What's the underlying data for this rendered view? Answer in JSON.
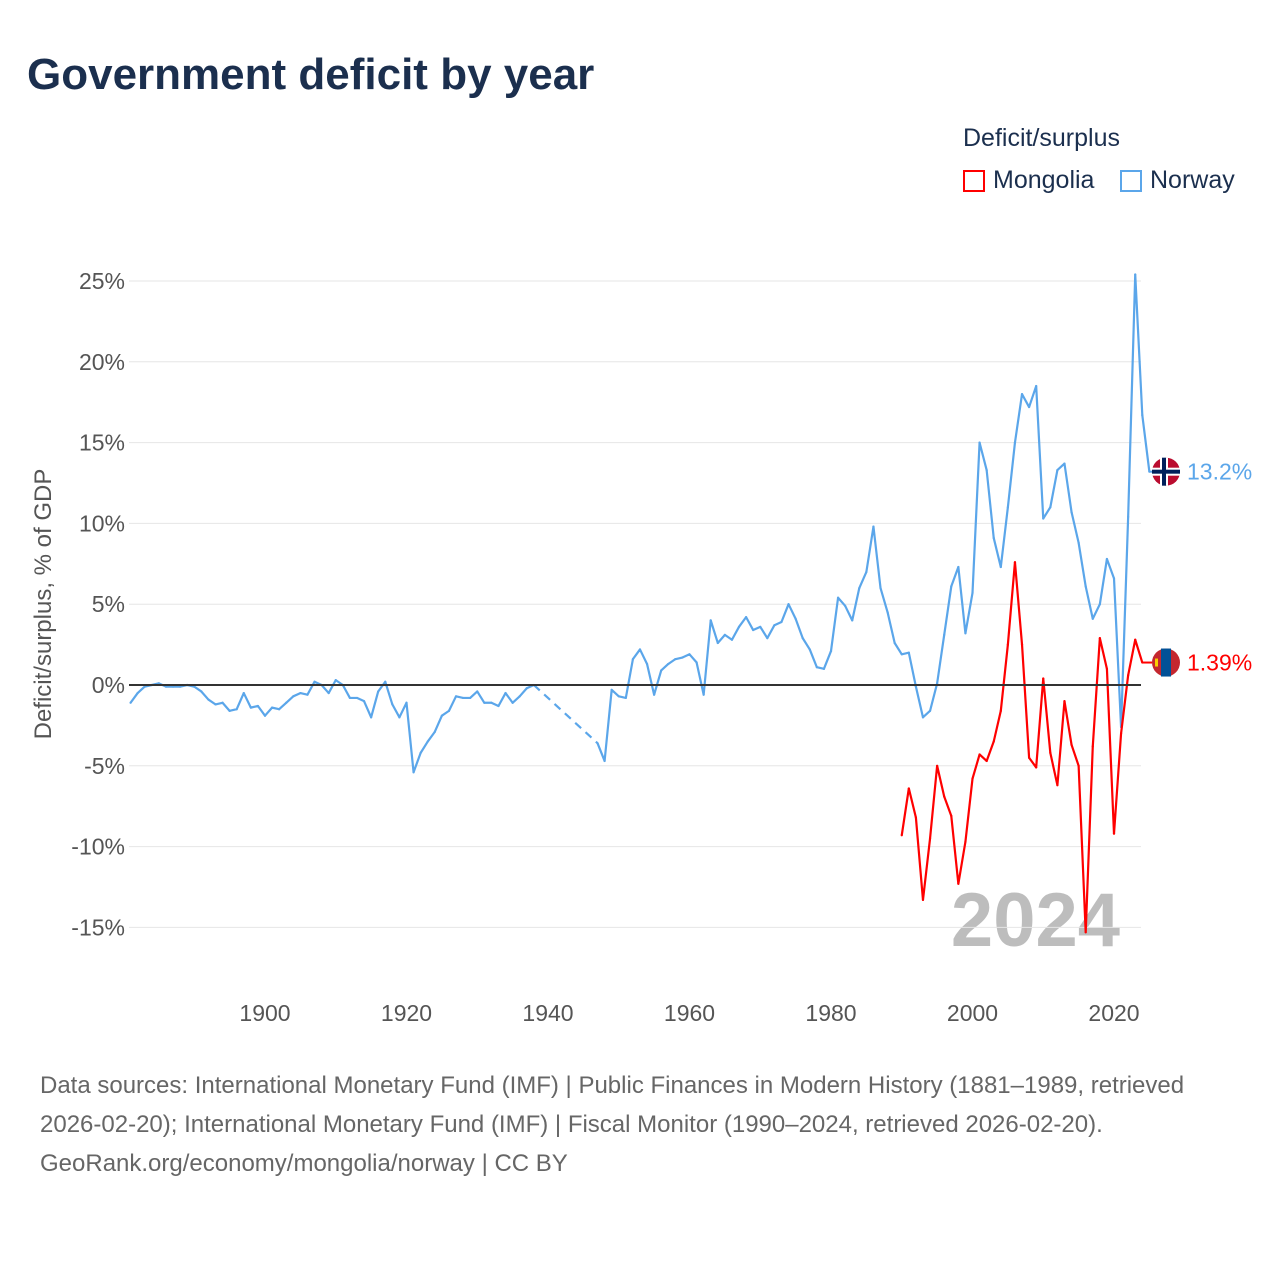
{
  "chart_data": {
    "type": "line",
    "title": "Government deficit by year",
    "ylabel": "Deficit/surplus, % of GDP",
    "xlabel": "",
    "legend_title": "Deficit/surplus",
    "legend_position": "top-right",
    "year_watermark": "2024",
    "xlim": [
      1881,
      2024
    ],
    "ylim": [
      -17,
      27
    ],
    "xticks": [
      1900,
      1920,
      1940,
      1960,
      1980,
      2000,
      2020
    ],
    "yticks": [
      -15,
      -10,
      -5,
      0,
      5,
      10,
      15,
      20,
      25
    ],
    "ytick_labels": [
      "-15%",
      "-10%",
      "-5%",
      "0%",
      "5%",
      "10%",
      "15%",
      "20%",
      "25%"
    ],
    "series": [
      {
        "name": "Mongolia",
        "color": "#ff0000",
        "end_label": "1.39%",
        "start_year": 1990,
        "values": [
          -9.3,
          -6.4,
          -8.2,
          -13.3,
          -9.5,
          -5.0,
          -6.9,
          -8.1,
          -12.3,
          -9.7,
          -5.8,
          -4.3,
          -4.7,
          -3.5,
          -1.6,
          2.5,
          7.6,
          2.5,
          -4.5,
          -5.1,
          0.4,
          -4.2,
          -6.2,
          -1.0,
          -3.7,
          -5.0,
          -15.3,
          -3.8,
          2.9,
          1.0,
          -9.2,
          -3.0,
          0.6,
          2.8,
          1.39
        ]
      },
      {
        "name": "Norway",
        "color": "#5ba6ea",
        "end_label": "13.2%",
        "start_year": 1881,
        "values": [
          -1.1,
          -0.5,
          -0.1,
          0,
          0.1,
          -0.1,
          -0.1,
          -0.1,
          0,
          -0.1,
          -0.4,
          -0.9,
          -1.2,
          -1.1,
          -1.6,
          -1.5,
          -0.5,
          -1.4,
          -1.3,
          -1.9,
          -1.4,
          -1.5,
          -1.1,
          -0.7,
          -0.5,
          -0.6,
          0.2,
          0,
          -0.5,
          0.3,
          0,
          -0.8,
          -0.8,
          -1.0,
          -2.0,
          -0.4,
          0.2,
          -1.2,
          -2.0,
          -1.1,
          -5.4,
          -4.2,
          -3.5,
          -2.9,
          -1.9,
          -1.6,
          -0.7,
          -0.8,
          -0.8,
          -0.4,
          -1.1,
          -1.1,
          -1.3,
          -0.5,
          -1.1,
          -0.7,
          -0.2,
          0.0,
          null,
          null,
          null,
          null,
          null,
          null,
          null,
          null,
          -3.6,
          -4.7,
          -0.3,
          -0.7,
          -0.8,
          1.6,
          2.2,
          1.3,
          -0.6,
          0.9,
          1.3,
          1.6,
          1.7,
          1.9,
          1.4,
          -0.6,
          4.0,
          2.6,
          3.1,
          2.8,
          3.6,
          4.2,
          3.4,
          3.6,
          2.9,
          3.7,
          3.9,
          5.0,
          4.1,
          2.9,
          2.2,
          1.1,
          1.0,
          2.1,
          5.4,
          4.9,
          4.0,
          6.0,
          7.0,
          9.8,
          6.0,
          4.5,
          2.6,
          1.9,
          2.0,
          -0.1,
          -2.0,
          -1.6,
          0.1,
          3.1,
          6.1,
          7.3,
          3.2,
          5.7,
          15.0,
          13.3,
          9.1,
          7.3,
          11.0,
          15.0,
          18.0,
          17.2,
          18.5,
          10.3,
          11.0,
          13.3,
          13.7,
          10.7,
          8.8,
          6.1,
          4.1,
          5.0,
          7.8,
          6.6,
          -2.6,
          10.4,
          25.4,
          16.7,
          13.2
        ]
      }
    ]
  },
  "footer": {
    "sources": "Data sources: International Monetary Fund (IMF) | Public Finances in Modern History (1881–1989, retrieved 2026-02-20); International Monetary Fund (IMF) | Fiscal Monitor (1990–2024, retrieved 2026-02-20).",
    "credit": "GeoRank.org/economy/mongolia/norway | CC BY"
  }
}
